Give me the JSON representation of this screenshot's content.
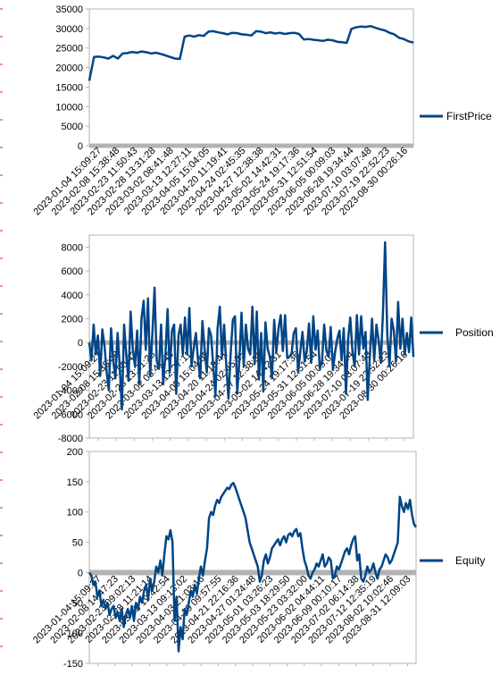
{
  "colors": {
    "series": "#004586",
    "grid": "#b3b3b3",
    "zero_band": "#b3b3b3"
  },
  "chart_data": [
    {
      "type": "line",
      "ylim": [
        0,
        35000
      ],
      "yticks": [
        0,
        5000,
        10000,
        15000,
        20000,
        25000,
        30000,
        35000
      ],
      "ytick_labels": [
        "0",
        "5000",
        "10000",
        "15000",
        "20000",
        "25000",
        "30000",
        "35000"
      ],
      "xtick_labels": [
        "2023-01-04 15:09:27",
        "2023-02-08 15:38:48",
        "2023-02-23 11:50:43",
        "2023-02-28 13:31:28",
        "2023-03-02 08:41:48",
        "2023-03-13 12:27:11",
        "2023-04-05 15:04:05",
        "2023-04-20 11:19:41",
        "2023-04-24 02:45:35",
        "2023-04-27 12:38:38",
        "2023-05-02 14:42:31",
        "2023-05-24 19:17:36",
        "2023-05-31 12:51:54",
        "2023-06-05 00:09:03",
        "2023-06-28 19:34:44",
        "2023-07-10 03:07:48",
        "2023-07-19 22:52:23",
        "2023-08-30 00:26:16"
      ],
      "legend_position": "right",
      "series": [
        {
          "name": "FirstPrice",
          "values": [
            16600,
            22700,
            22800,
            22600,
            22300,
            23000,
            22300,
            23600,
            23700,
            24000,
            23800,
            24100,
            23900,
            23600,
            23800,
            23500,
            23100,
            22700,
            22300,
            22200,
            27900,
            28200,
            27900,
            28300,
            28100,
            29200,
            29300,
            29000,
            28800,
            28500,
            28900,
            28800,
            28500,
            28400,
            28200,
            29300,
            29200,
            28800,
            29000,
            28700,
            28900,
            28600,
            28800,
            28900,
            28600,
            27200,
            27300,
            27100,
            27000,
            26800,
            27100,
            27000,
            26600,
            26500,
            26300,
            29900,
            30300,
            30500,
            30400,
            30600,
            30200,
            29800,
            29500,
            28900,
            28500,
            27600,
            27300,
            26700,
            26400
          ]
        }
      ]
    },
    {
      "type": "line",
      "ylim": [
        -8000,
        9000
      ],
      "yticks": [
        -8000,
        -6000,
        -4000,
        -2000,
        0,
        2000,
        4000,
        6000,
        8000
      ],
      "ytick_labels": [
        "-8000",
        "-6000",
        "-4000",
        "-2000",
        "0",
        "2000",
        "4000",
        "6000",
        "8000"
      ],
      "xtick_labels": [
        "2023-01-04 15:09:27",
        "2023-02-08 15:38:48",
        "2023-02-23 11:50:43",
        "2023-02-28 13:31:28",
        "2023-03-02 08:41:48",
        "2023-03-13 12:27:11",
        "2023-04-05 15:04:05",
        "2023-04-20 11:19:41",
        "2023-04-24 02:45:35",
        "2023-04-27 12:38:38",
        "2023-05-02 14:42:31",
        "2023-05-24 19:17:36",
        "2023-05-31 12:51:54",
        "2023-06-05 00:09:03",
        "2023-06-28 19:34:44",
        "2023-07-10 03:07:48",
        "2023-07-19 22:52:23",
        "2023-08-30 00:26:16"
      ],
      "legend_position": "right",
      "series": [
        {
          "name": "Position",
          "values": [
            0,
            -1500,
            1500,
            -1000,
            600,
            -2800,
            1100,
            -300,
            -2500,
            -4000,
            1200,
            -1500,
            -3000,
            800,
            -2000,
            -5600,
            1500,
            -1000,
            -3200,
            2600,
            -500,
            -2000,
            1000,
            -3500,
            2000,
            3500,
            -600,
            3700,
            -2800,
            800,
            4600,
            -1500,
            -2200,
            1500,
            -3500,
            -1000,
            2800,
            -2500,
            1000,
            1500,
            -4300,
            600,
            1500,
            -1000,
            2100,
            -1000,
            2900,
            -2000,
            -500,
            800,
            -1500,
            -3000,
            1800,
            -500,
            -2500,
            1200,
            600,
            -2000,
            -4500,
            1200,
            3000,
            -1200,
            1500,
            -2000,
            -4700,
            -800,
            1900,
            2200,
            -4200,
            -1500,
            2500,
            -2000,
            1500,
            -500,
            -1000,
            3000,
            -1800,
            2600,
            -3100,
            800,
            -4100,
            1700,
            -500,
            -1200,
            -3000,
            1900,
            -800,
            1200,
            2300,
            -700,
            2300,
            -1300,
            -1200,
            -900,
            800,
            1200,
            -2500,
            -800,
            900,
            -1600,
            -700,
            1600,
            -1700,
            2200,
            -600,
            1000,
            -2200,
            -1500,
            1500,
            -700,
            -1200,
            1300,
            -2300,
            -800,
            300,
            1000,
            -1500,
            1200,
            -4300,
            300,
            2100,
            -800,
            -2000,
            2300,
            -1000,
            2200,
            -500,
            900,
            -4800,
            -1000,
            2000,
            -1500,
            1500,
            200,
            -1700,
            2500,
            8400,
            600,
            -2000,
            2000,
            1000,
            -1600,
            3400,
            -500,
            2000,
            -1000,
            800,
            -800,
            2100,
            -1200
          ]
        }
      ]
    },
    {
      "type": "line",
      "ylim": [
        -150,
        200
      ],
      "yticks": [
        -150,
        -100,
        -50,
        0,
        50,
        100,
        150,
        200
      ],
      "ytick_labels": [
        "-150",
        "-100",
        "-50",
        "0",
        "50",
        "100",
        "150",
        "200"
      ],
      "xtick_labels": [
        "2023-01-04 15:09:27",
        "2023-02-08 14:47:23",
        "2023-02-23 09:02:13",
        "2023-02-28 11:21:14",
        "2023-03-03 19:42:54",
        "2023-03-13 09:13:02",
        "2023-04-03 21:03:16",
        "2023-04-19 09:57:55",
        "2023-04-21 22:16:36",
        "2023-04-27 01:24:48",
        "2023-05-01 03:26:23",
        "2023-05-03 18:29:50",
        "2023-05-23 03:32:00",
        "2023-06-02 04:44:11",
        "2023-06-09 00:10:17",
        "2023-07-02 06:14:38",
        "2023-07-12 12:35:19",
        "2023-08-02 10:02:46",
        "2023-08-31 12:09:03"
      ],
      "legend_position": "right",
      "series": [
        {
          "name": "Equity",
          "values": [
            0,
            -5,
            -20,
            -15,
            -40,
            -30,
            -55,
            -45,
            -60,
            -50,
            -70,
            -60,
            -55,
            -75,
            -65,
            -80,
            -60,
            -90,
            -70,
            -60,
            -75,
            -55,
            -80,
            -50,
            -60,
            -40,
            -50,
            -30,
            -20,
            -45,
            -10,
            -30,
            -15,
            10,
            0,
            20,
            -5,
            30,
            60,
            55,
            70,
            50,
            -80,
            -40,
            -130,
            -90,
            -110,
            -60,
            -70,
            -50,
            -30,
            -40,
            -20,
            -35,
            -10,
            10,
            -5,
            20,
            40,
            90,
            100,
            95,
            110,
            120,
            115,
            125,
            130,
            135,
            140,
            138,
            145,
            148,
            140,
            130,
            120,
            110,
            100,
            90,
            70,
            50,
            40,
            30,
            20,
            10,
            -15,
            -5,
            20,
            30,
            15,
            25,
            40,
            45,
            50,
            55,
            45,
            55,
            60,
            50,
            62,
            65,
            60,
            68,
            72,
            60,
            65,
            40,
            20,
            10,
            -5,
            -10,
            0,
            5,
            15,
            10,
            20,
            30,
            10,
            15,
            25,
            20,
            -10,
            -5,
            10,
            5,
            15,
            25,
            35,
            40,
            30,
            45,
            55,
            60,
            20,
            30,
            -10,
            -15,
            -5,
            10,
            0,
            5,
            15,
            0,
            -10,
            5,
            10,
            20,
            30,
            25,
            15,
            20,
            30,
            40,
            50,
            125,
            110,
            100,
            115,
            105,
            120,
            95,
            80,
            75
          ]
        }
      ]
    }
  ]
}
